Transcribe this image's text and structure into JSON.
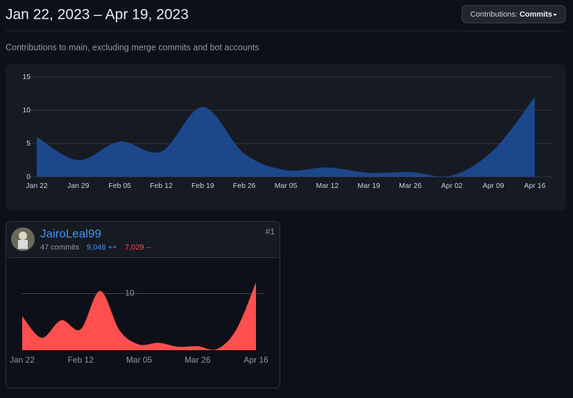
{
  "header": {
    "title": "Jan 22, 2023 – Apr 19, 2023",
    "button_label": "Contributions:",
    "button_value": "Commits"
  },
  "subtitle": "Contributions to main, excluding merge commits and bot accounts",
  "contributor": {
    "name": "JairoLeal99",
    "rank": "#1",
    "commits": "47 commits",
    "additions": "9,048 ++",
    "deletions": "7,029 --"
  },
  "chart_data": [
    {
      "type": "area",
      "color": "#1f4f9e",
      "categories": [
        "Jan 22",
        "Jan 29",
        "Feb 05",
        "Feb 12",
        "Feb 19",
        "Feb 26",
        "Mar 05",
        "Mar 12",
        "Mar 19",
        "Mar 26",
        "Apr 02",
        "Apr 09",
        "Apr 16"
      ],
      "values": [
        6,
        2.5,
        5.3,
        3.8,
        10.5,
        3.5,
        1,
        1.4,
        0.6,
        0.7,
        0.2,
        4,
        12
      ],
      "ylim": [
        0,
        15
      ],
      "yticks": [
        0,
        5,
        10,
        15
      ],
      "grid": true
    },
    {
      "type": "area",
      "color": "#ff4f4f",
      "categories": [
        "Jan 22",
        null,
        null,
        "Feb 12",
        null,
        null,
        "Mar 05",
        null,
        null,
        "Mar 26",
        null,
        null,
        "Apr 16"
      ],
      "values": [
        6,
        2.2,
        5.3,
        3.7,
        10.5,
        3.5,
        1,
        1.3,
        0.6,
        0.7,
        0.2,
        3.7,
        12
      ],
      "ylim": [
        0,
        13.5
      ],
      "yticks": [
        10
      ],
      "grid": true
    }
  ]
}
